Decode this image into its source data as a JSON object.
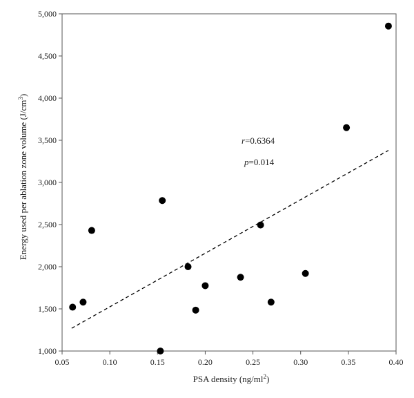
{
  "chart_data": {
    "type": "scatter",
    "xlabel": "PSA density (ng/ml",
    "xlabel_sup": "2",
    "xlabel_end": ")",
    "ylabel": "Energy used per ablation zone volume (J/cm",
    "ylabel_sup": "3",
    "ylabel_end": ")",
    "xlim": [
      0.05,
      0.4
    ],
    "ylim": [
      1000,
      5000
    ],
    "xticks": [
      0.05,
      0.1,
      0.15,
      0.2,
      0.25,
      0.3,
      0.35,
      0.4
    ],
    "xtick_labels": [
      "0.05",
      "0.10",
      "0.15",
      "0.20",
      "0.25",
      "0.30",
      "0.35",
      "0.40"
    ],
    "yticks": [
      1000,
      1500,
      2000,
      2500,
      3000,
      3500,
      4000,
      4500,
      5000
    ],
    "ytick_labels": [
      "1,000",
      "1,500",
      "2,000",
      "2,500",
      "3,000",
      "3,500",
      "4,000",
      "4,500",
      "5,000"
    ],
    "points": [
      {
        "x": 0.061,
        "y": 1520
      },
      {
        "x": 0.072,
        "y": 1580
      },
      {
        "x": 0.081,
        "y": 2430
      },
      {
        "x": 0.153,
        "y": 1000
      },
      {
        "x": 0.155,
        "y": 2785
      },
      {
        "x": 0.182,
        "y": 2000
      },
      {
        "x": 0.19,
        "y": 1485
      },
      {
        "x": 0.2,
        "y": 1775
      },
      {
        "x": 0.237,
        "y": 1875
      },
      {
        "x": 0.258,
        "y": 2495
      },
      {
        "x": 0.269,
        "y": 1580
      },
      {
        "x": 0.305,
        "y": 1920
      },
      {
        "x": 0.348,
        "y": 3650
      },
      {
        "x": 0.392,
        "y": 4855
      }
    ],
    "trendline": {
      "x": [
        0.06,
        0.392
      ],
      "y": [
        1270,
        3380
      ],
      "style": "dashed"
    },
    "annotations": {
      "r_symbol": "r",
      "r_value": "=0.6364",
      "p_symbol": "p",
      "p_value": "=0.014"
    },
    "grid": false,
    "legend": "none",
    "colors": {
      "marker": "#000000",
      "line": "#000000",
      "axis": "#555555"
    }
  }
}
